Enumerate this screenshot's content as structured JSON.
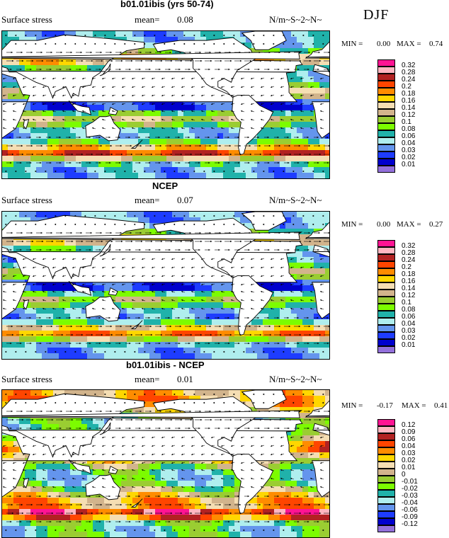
{
  "season": "DJF",
  "panels": [
    {
      "id": "model",
      "title": "b01.01ibis (yrs 50-74)",
      "variable": "Surface stress",
      "mean_label": "mean=",
      "mean": "0.08",
      "units": "N/m~S~2~N~",
      "min_label": "MIN =",
      "min": "0.00",
      "max_label": "MAX =",
      "max": "0.74"
    },
    {
      "id": "ncep",
      "title": "NCEP",
      "variable": "Surface stress",
      "mean_label": "mean=",
      "mean": "0.07",
      "units": "N/m~S~2~N~",
      "min_label": "MIN =",
      "min": "0.00",
      "max_label": "MAX =",
      "max": "0.27"
    },
    {
      "id": "diff",
      "title": "b01.01ibis - NCEP",
      "variable": "Surface stress",
      "mean_label": "mean=",
      "mean": "0.01",
      "units": "N/m~S~2~N~",
      "min_label": "MIN =",
      "min": "-0.17",
      "max_label": "MAX =",
      "max": "0.41"
    }
  ],
  "legend_abs": {
    "labels": [
      "0.32",
      "0.28",
      "0.24",
      "0.2",
      "0.18",
      "0.16",
      "0.14",
      "0.12",
      "0.1",
      "0.08",
      "0.06",
      "0.04",
      "0.03",
      "0.02",
      "0.01"
    ],
    "colors": [
      "#ff1493",
      "#ffb6c1",
      "#b22222",
      "#ff4500",
      "#ff8c00",
      "#ffd700",
      "#f5deb3",
      "#d2b48c",
      "#9acd32",
      "#7cfc00",
      "#20b2aa",
      "#afeeee",
      "#6495ed",
      "#1e3cff",
      "#0000cd",
      "#9370db"
    ]
  },
  "legend_diff": {
    "labels": [
      "0.12",
      "0.09",
      "0.06",
      "0.04",
      "0.03",
      "0.02",
      "0.01",
      "0",
      "-0.01",
      "-0.02",
      "-0.03",
      "-0.04",
      "-0.06",
      "-0.09",
      "-0.12"
    ],
    "colors": [
      "#ff1493",
      "#ffb6c1",
      "#b22222",
      "#ff4500",
      "#ff8c00",
      "#ffd700",
      "#f5deb3",
      "#d2b48c",
      "#9acd32",
      "#7cfc00",
      "#20b2aa",
      "#afeeee",
      "#6495ed",
      "#1e3cff",
      "#0000cd",
      "#9370db"
    ]
  },
  "chart_data": [
    {
      "type": "heatmap",
      "title": "b01.01ibis (yrs 50-74)",
      "variable": "Surface stress",
      "units": "N/m~S~2~N~",
      "mean": 0.08,
      "min": 0.0,
      "max": 0.74,
      "field": "global surface wind stress magnitude with vectors"
    },
    {
      "type": "heatmap",
      "title": "NCEP",
      "variable": "Surface stress",
      "units": "N/m~S~2~N~",
      "mean": 0.07,
      "min": 0.0,
      "max": 0.27,
      "field": "global surface wind stress magnitude with vectors"
    },
    {
      "type": "heatmap",
      "title": "b01.01ibis - NCEP",
      "variable": "Surface stress",
      "units": "N/m~S~2~N~",
      "mean": 0.01,
      "min": -0.17,
      "max": 0.41,
      "field": "difference of surface wind stress magnitude with vectors"
    }
  ]
}
